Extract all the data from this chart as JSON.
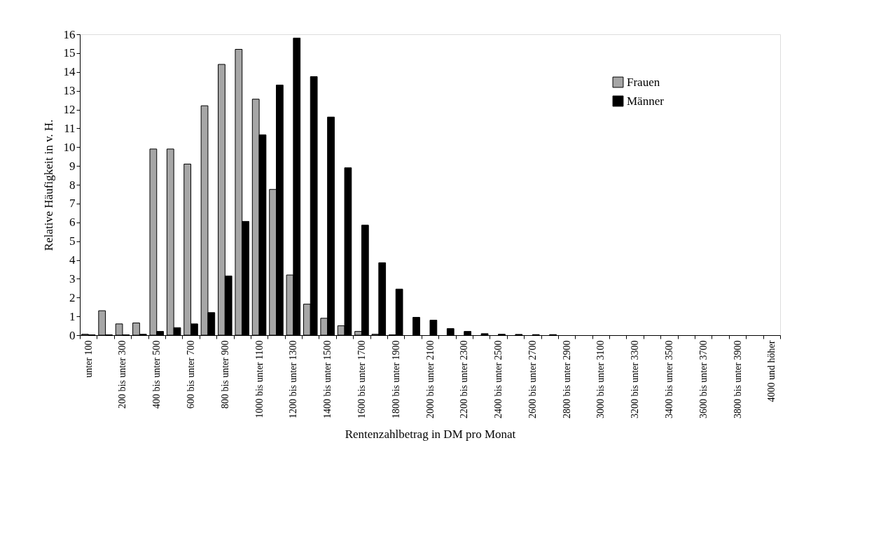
{
  "chart_data": {
    "type": "bar",
    "xlabel": "Rentenzahlbetrag in DM pro Monat",
    "ylabel": "Relative Häufigkeit in v. H.",
    "categories": [
      "unter 100",
      null,
      "200 bis unter 300",
      null,
      "400 bis unter 500",
      null,
      "600 bis unter 700",
      null,
      "800 bis unter 900",
      null,
      "1000 bis unter 1100",
      null,
      "1200 bis unter 1300",
      null,
      "1400 bis unter 1500",
      null,
      "1600 bis unter 1700",
      null,
      "1800 bis unter 1900",
      null,
      "2000 bis unter 2100",
      null,
      "2200 bis unter 2300",
      null,
      "2400 bis unter 2500",
      null,
      "2600 bis unter 2700",
      null,
      "2800 bis unter 2900",
      null,
      "3000 bis unter 3100",
      null,
      "3200 bis unter 3300",
      null,
      "3400 bis unter 3500",
      null,
      "3600 bis unter 3700",
      null,
      "3800 bis unter 3900",
      null,
      "4000 und höher"
    ],
    "series": [
      {
        "name": "Frauen",
        "color": "#a6a6a6",
        "values": [
          0.05,
          1.3,
          0.6,
          0.65,
          9.9,
          9.9,
          9.1,
          12.2,
          14.4,
          15.2,
          12.55,
          7.75,
          3.2,
          1.65,
          0.9,
          0.5,
          0.2,
          0.05,
          0.02,
          null,
          null,
          null,
          null,
          null,
          null,
          null,
          null,
          null,
          null,
          null,
          null,
          null,
          null,
          null,
          null,
          null,
          null,
          null,
          null,
          null,
          null
        ]
      },
      {
        "name": "Männer",
        "color": "#000000",
        "values": [
          0.02,
          0.02,
          0.02,
          0.05,
          0.2,
          0.4,
          0.6,
          1.2,
          3.15,
          6.05,
          10.65,
          13.3,
          15.8,
          13.75,
          11.6,
          8.9,
          5.85,
          3.85,
          2.45,
          0.95,
          0.8,
          0.35,
          0.2,
          0.08,
          0.05,
          0.04,
          0.03,
          0.03,
          null,
          null,
          null,
          null,
          null,
          null,
          null,
          null,
          null,
          null,
          null,
          null,
          null
        ]
      }
    ],
    "ylim": [
      0,
      16
    ],
    "yticks": [
      0,
      1,
      2,
      3,
      4,
      5,
      6,
      7,
      8,
      9,
      10,
      11,
      12,
      13,
      14,
      15,
      16
    ],
    "grid": false,
    "legend": "top right"
  }
}
